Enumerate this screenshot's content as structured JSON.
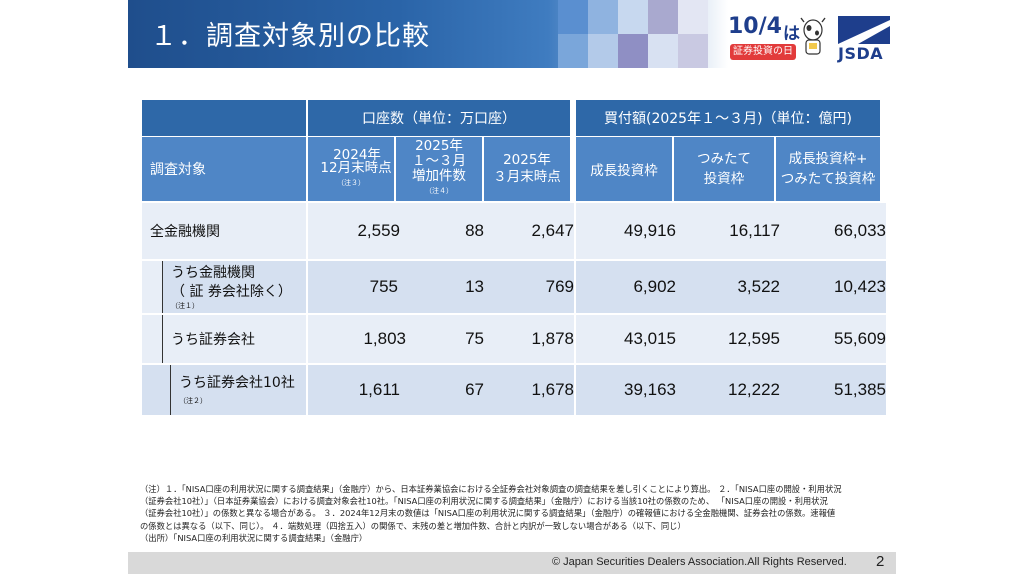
{
  "header": {
    "title": "１．調査対象別の比較",
    "logo_104_main": "10/4",
    "logo_104_suffix": "は",
    "logo_104_sub": "証券投資の日",
    "logo_jsda": "JSDA"
  },
  "table": {
    "group_headers": {
      "accounts": "口座数（単位：万口座）",
      "purchases": "買付額(2025年１～３月)（単位：億円)"
    },
    "column_headers": {
      "target": "調査対象",
      "col1_line1": "2024年",
      "col1_line2": "12月末時点",
      "col1_note": "（注３）",
      "col2_line1": "2025年",
      "col2_line2": "１～３月",
      "col2_line3": "増加件数",
      "col2_note": "（注４）",
      "col3_line1": "2025年",
      "col3_line2": "３月末時点",
      "col4": "成長投資枠",
      "col5_line1": "つみたて",
      "col5_line2": "投資枠",
      "col6_line1": "成長投資枠+",
      "col6_line2": "つみたて投資枠"
    },
    "rows": [
      {
        "label": "全金融機関",
        "values": [
          "2,559",
          "88",
          "2,647",
          "49,916",
          "16,117",
          "66,033"
        ]
      },
      {
        "label_line1": "うち金融機関",
        "label_line2": "（ 証 券会社除く）",
        "note": "（注１）",
        "values": [
          "755",
          "13",
          "769",
          "6,902",
          "3,522",
          "10,423"
        ]
      },
      {
        "label": "うち証券会社",
        "values": [
          "1,803",
          "75",
          "1,878",
          "43,015",
          "12,595",
          "55,609"
        ]
      },
      {
        "label": "うち証券会社10社",
        "note": "（注２）",
        "values": [
          "1,611",
          "67",
          "1,678",
          "39,163",
          "12,222",
          "51,385"
        ]
      }
    ]
  },
  "notes": {
    "line1": "（注）１．「NISA口座の利用状況に関する調査結果」（金融庁）から、日本証券業協会における全証券会社対象調査の調査結果を差し引くことにより算出。 ２．「NISA口座の開設・利用状況",
    "line2": "（証券会社10社）」（日本証券業協会）における調査対象会社10社。「NISA口座の利用状況に関する調査結果」（金融庁）における当該10社の係数のため、 「NISA口座の開設・利用状況",
    "line3": "（証券会社10社）」の係数と異なる場合がある。 ３．2024年12月末の数値は「NISA口座の利用状況に関する調査結果」（金融庁）の確報値における全金融機関、証券会社の係数。速報値",
    "line4": "の係数とは異なる（以下、同じ）。 ４．端数処理（四捨五入）の関係で、末残の差と増加件数、合計と内訳が一致しない場合がある（以下、同じ）",
    "line5": "（出所）「NISA口座の利用状況に関する調査結果」（金融庁）"
  },
  "footer": {
    "copyright": "© Japan Securities Dealers Association.All Rights Reserved.",
    "page": "2"
  },
  "colors": {
    "header_dark": "#2e68a8",
    "header_light": "#4f86c6",
    "row_light": "#e8eef7",
    "row_dark": "#d5e0f0"
  }
}
